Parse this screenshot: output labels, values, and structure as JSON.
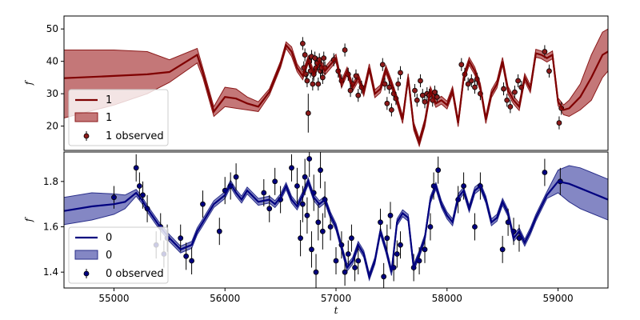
{
  "chart_data": [
    {
      "type": "line",
      "panel": "top",
      "xlabel": "",
      "ylabel": "f",
      "xlim": [
        54550,
        59450
      ],
      "ylim": [
        12.5,
        54
      ],
      "yticks": [
        20,
        30,
        40,
        50
      ],
      "grid": false,
      "legend_position": "lower-left",
      "legend": [
        "1",
        "1",
        "1 observed"
      ],
      "colors": {
        "line": "#7f0000",
        "band": "#b0494b",
        "band_edge": "#8b1a1a",
        "points": "#8b1a1a"
      },
      "model": {
        "x": [
          54550,
          55000,
          55300,
          55500,
          55750,
          55800,
          55900,
          56000,
          56100,
          56200,
          56300,
          56400,
          56500,
          56550,
          56600,
          56650,
          56700,
          56750,
          56800,
          56850,
          56900,
          57000,
          57050,
          57100,
          57150,
          57200,
          57250,
          57300,
          57350,
          57400,
          57450,
          57500,
          57550,
          57600,
          57650,
          57700,
          57750,
          57800,
          57850,
          57900,
          57950,
          58000,
          58050,
          58100,
          58150,
          58200,
          58250,
          58300,
          58350,
          58400,
          58450,
          58500,
          58550,
          58600,
          58650,
          58700,
          58750,
          58800,
          58850,
          58900,
          58950,
          59000,
          59050,
          59100,
          59200,
          59300,
          59400,
          59450
        ],
        "y": [
          34.8,
          35.5,
          36,
          36.7,
          42,
          36.5,
          24.5,
          29,
          28.5,
          27,
          26,
          30.5,
          39,
          45,
          43,
          38,
          35.5,
          40.5,
          36,
          40,
          37,
          41,
          33,
          37,
          32,
          35,
          30.5,
          38,
          30,
          31.5,
          37.5,
          33,
          28,
          22,
          35,
          20,
          15,
          21,
          31,
          27,
          28,
          26.5,
          31,
          21,
          35,
          40,
          37,
          32,
          22,
          30,
          33,
          40,
          31,
          28,
          26,
          35,
          31.5,
          42.5,
          42,
          41,
          42,
          27.5,
          25,
          25.5,
          29,
          35,
          42,
          43
        ],
        "lower": [
          22.5,
          26.5,
          30,
          33.5,
          39.5,
          35,
          23,
          26,
          25.5,
          25,
          24.5,
          29.5,
          38,
          44,
          41.5,
          36.8,
          34.3,
          39.3,
          34.8,
          38.8,
          35.8,
          39.8,
          31.8,
          35.8,
          30.8,
          33.8,
          29.3,
          36.8,
          28.8,
          30.3,
          36.3,
          31.8,
          26.8,
          20.8,
          33.8,
          18.8,
          13.8,
          19.8,
          29.8,
          25.8,
          26.8,
          25.3,
          29.8,
          19.8,
          33.8,
          38.8,
          35.8,
          30.8,
          20.8,
          28.8,
          31.8,
          38.8,
          29.8,
          26.8,
          24.8,
          33.8,
          30.3,
          41.3,
          40.8,
          39.8,
          40.8,
          26.3,
          23.5,
          23,
          25,
          28,
          35,
          37
        ],
        "upper": [
          43.5,
          43.5,
          43,
          40.5,
          44,
          38,
          26,
          32,
          31.5,
          29,
          27.5,
          31.5,
          40,
          46,
          44.5,
          39.2,
          36.7,
          41.7,
          37.2,
          41.2,
          38.2,
          42.2,
          34.2,
          38.2,
          33.2,
          36.2,
          31.7,
          39.2,
          31.2,
          32.7,
          38.7,
          34.2,
          29.2,
          23.2,
          36.2,
          21.2,
          16.2,
          22.2,
          32.2,
          28.2,
          29.2,
          27.7,
          32.2,
          22.2,
          36.2,
          41.2,
          38.2,
          33.2,
          23.2,
          31.2,
          34.2,
          41.2,
          32.2,
          29.2,
          27.2,
          36.2,
          32.7,
          43.7,
          43.2,
          42.2,
          43.2,
          28.7,
          26.5,
          28,
          33,
          42,
          49,
          50
        ]
      },
      "observed": {
        "x": [
          56700,
          56710,
          56720,
          56730,
          56740,
          56750,
          56760,
          56770,
          56780,
          56790,
          56800,
          56810,
          56820,
          56830,
          56840,
          56850,
          56860,
          56870,
          56880,
          56890,
          56900,
          56980,
          57020,
          57050,
          57080,
          57110,
          57130,
          57150,
          57180,
          57200,
          57230,
          57420,
          57440,
          57460,
          57480,
          57500,
          57520,
          57540,
          57560,
          57580,
          57710,
          57730,
          57760,
          57780,
          57800,
          57820,
          57840,
          57870,
          57890,
          57910,
          58130,
          58160,
          58190,
          58220,
          58250,
          58270,
          58300,
          58510,
          58540,
          58570,
          58610,
          58640,
          58670,
          58880,
          58920,
          59010,
          59030
        ],
        "y": [
          45.5,
          38,
          42,
          36,
          34,
          24,
          40,
          37,
          41.5,
          33,
          36,
          41,
          38,
          39.5,
          33,
          40.5,
          37,
          38,
          35,
          41,
          38,
          40.5,
          37,
          34,
          43.5,
          36,
          31,
          33,
          35.5,
          29.5,
          32,
          39,
          33,
          27,
          32,
          25,
          30,
          28.5,
          33,
          36.5,
          31,
          28,
          34,
          29.5,
          27.5,
          30,
          29.5,
          28,
          30.5,
          29,
          39,
          36,
          33,
          34,
          32,
          34.5,
          30,
          31.5,
          28,
          26,
          30.5,
          34,
          32,
          43,
          37,
          21,
          25.5
        ],
        "err": [
          2,
          2,
          2,
          2,
          2,
          6,
          2,
          2,
          2,
          2,
          2,
          2,
          2,
          2,
          2,
          2,
          2,
          2,
          2,
          2,
          2,
          2,
          2,
          2,
          2,
          2,
          2,
          2,
          2,
          2,
          2,
          2,
          2,
          2,
          2,
          2,
          2,
          2,
          2,
          2,
          2,
          2,
          2,
          2,
          2,
          2,
          2,
          2,
          2,
          2,
          2,
          2,
          2,
          2,
          2,
          2,
          2,
          2,
          2,
          2,
          2,
          2,
          2,
          2,
          2,
          2,
          2
        ]
      }
    },
    {
      "type": "line",
      "panel": "bottom",
      "xlabel": "t",
      "ylabel": "f",
      "xlim": [
        54550,
        59450
      ],
      "ylim": [
        1.33,
        1.93
      ],
      "xticks": [
        55000,
        56000,
        57000,
        58000,
        59000
      ],
      "yticks": [
        1.4,
        1.6,
        1.8
      ],
      "grid": false,
      "legend_position": "lower-left",
      "legend": [
        "0",
        "0",
        "0 observed"
      ],
      "colors": {
        "line": "#00007f",
        "band": "#5b5fb0",
        "band_edge": "#2a2f8a",
        "points": "#00007f"
      },
      "model": {
        "x": [
          54550,
          54800,
          55000,
          55100,
          55200,
          55250,
          55300,
          55400,
          55500,
          55600,
          55700,
          55750,
          55800,
          55900,
          56000,
          56050,
          56100,
          56150,
          56200,
          56300,
          56400,
          56450,
          56500,
          56550,
          56600,
          56650,
          56700,
          56750,
          56800,
          56850,
          56900,
          56950,
          57000,
          57050,
          57100,
          57150,
          57200,
          57250,
          57300,
          57350,
          57400,
          57450,
          57500,
          57550,
          57600,
          57650,
          57700,
          57750,
          57800,
          57850,
          57900,
          57950,
          58000,
          58050,
          58100,
          58150,
          58200,
          58250,
          58300,
          58350,
          58400,
          58450,
          58500,
          58550,
          58600,
          58650,
          58700,
          58750,
          58800,
          58900,
          59000,
          59100,
          59200,
          59300,
          59400,
          59450
        ],
        "y": [
          1.67,
          1.69,
          1.7,
          1.71,
          1.75,
          1.72,
          1.68,
          1.61,
          1.55,
          1.5,
          1.52,
          1.58,
          1.62,
          1.7,
          1.74,
          1.79,
          1.75,
          1.72,
          1.76,
          1.71,
          1.72,
          1.7,
          1.73,
          1.78,
          1.72,
          1.69,
          1.74,
          1.8,
          1.73,
          1.7,
          1.72,
          1.65,
          1.6,
          1.51,
          1.42,
          1.45,
          1.52,
          1.48,
          1.38,
          1.45,
          1.58,
          1.5,
          1.4,
          1.62,
          1.66,
          1.64,
          1.42,
          1.48,
          1.55,
          1.72,
          1.78,
          1.7,
          1.65,
          1.62,
          1.73,
          1.76,
          1.68,
          1.76,
          1.78,
          1.72,
          1.62,
          1.64,
          1.71,
          1.66,
          1.55,
          1.58,
          1.53,
          1.58,
          1.64,
          1.74,
          1.8,
          1.79,
          1.77,
          1.75,
          1.73,
          1.72
        ],
        "lower": [
          1.61,
          1.63,
          1.655,
          1.68,
          1.735,
          1.705,
          1.665,
          1.595,
          1.535,
          1.485,
          1.505,
          1.565,
          1.605,
          1.685,
          1.725,
          1.775,
          1.735,
          1.705,
          1.745,
          1.695,
          1.705,
          1.685,
          1.715,
          1.765,
          1.705,
          1.675,
          1.725,
          1.785,
          1.715,
          1.685,
          1.705,
          1.635,
          1.585,
          1.495,
          1.405,
          1.435,
          1.505,
          1.465,
          1.365,
          1.435,
          1.565,
          1.485,
          1.385,
          1.605,
          1.645,
          1.625,
          1.405,
          1.465,
          1.535,
          1.705,
          1.765,
          1.685,
          1.635,
          1.605,
          1.715,
          1.745,
          1.665,
          1.745,
          1.765,
          1.705,
          1.605,
          1.625,
          1.695,
          1.645,
          1.535,
          1.565,
          1.515,
          1.565,
          1.625,
          1.725,
          1.75,
          1.71,
          1.68,
          1.66,
          1.64,
          1.63
        ],
        "upper": [
          1.73,
          1.75,
          1.745,
          1.74,
          1.765,
          1.735,
          1.695,
          1.625,
          1.565,
          1.515,
          1.535,
          1.595,
          1.635,
          1.715,
          1.755,
          1.805,
          1.765,
          1.735,
          1.775,
          1.725,
          1.735,
          1.715,
          1.745,
          1.795,
          1.735,
          1.705,
          1.755,
          1.815,
          1.745,
          1.715,
          1.735,
          1.665,
          1.615,
          1.525,
          1.435,
          1.465,
          1.535,
          1.495,
          1.395,
          1.465,
          1.595,
          1.515,
          1.415,
          1.635,
          1.675,
          1.655,
          1.435,
          1.495,
          1.565,
          1.735,
          1.795,
          1.715,
          1.665,
          1.635,
          1.745,
          1.775,
          1.695,
          1.775,
          1.795,
          1.735,
          1.635,
          1.655,
          1.725,
          1.675,
          1.565,
          1.595,
          1.545,
          1.595,
          1.655,
          1.755,
          1.85,
          1.87,
          1.86,
          1.84,
          1.82,
          1.81
        ]
      },
      "observed": {
        "x": [
          55000,
          55200,
          55230,
          55260,
          55300,
          55380,
          55420,
          55450,
          55480,
          55600,
          55650,
          55700,
          55800,
          55950,
          56000,
          56050,
          56100,
          56350,
          56400,
          56450,
          56500,
          56600,
          56650,
          56680,
          56700,
          56720,
          56740,
          56760,
          56780,
          56800,
          56820,
          56840,
          56860,
          56880,
          56900,
          56950,
          57000,
          57050,
          57080,
          57110,
          57140,
          57170,
          57200,
          57400,
          57430,
          57460,
          57490,
          57520,
          57550,
          57580,
          57700,
          57750,
          57800,
          57850,
          57880,
          57920,
          58100,
          58150,
          58250,
          58300,
          58500,
          58550,
          58600,
          58650,
          58880,
          59020
        ],
        "y": [
          1.73,
          1.86,
          1.78,
          1.74,
          1.68,
          1.52,
          1.6,
          1.48,
          1.55,
          1.55,
          1.47,
          1.45,
          1.7,
          1.58,
          1.76,
          1.78,
          1.82,
          1.75,
          1.68,
          1.8,
          1.72,
          1.86,
          1.78,
          1.55,
          1.7,
          1.82,
          1.65,
          1.9,
          1.5,
          1.75,
          1.4,
          1.62,
          1.85,
          1.58,
          1.72,
          1.6,
          1.45,
          1.52,
          1.4,
          1.48,
          1.55,
          1.42,
          1.45,
          1.62,
          1.38,
          1.55,
          1.65,
          1.42,
          1.48,
          1.52,
          1.42,
          1.45,
          1.5,
          1.6,
          1.78,
          1.85,
          1.72,
          1.78,
          1.6,
          1.78,
          1.5,
          1.62,
          1.58,
          1.55,
          1.84,
          1.8
        ],
        "err": [
          0.05,
          0.06,
          0.06,
          0.06,
          0.06,
          0.06,
          0.06,
          0.06,
          0.06,
          0.06,
          0.06,
          0.06,
          0.06,
          0.06,
          0.06,
          0.06,
          0.06,
          0.06,
          0.06,
          0.06,
          0.06,
          0.06,
          0.08,
          0.08,
          0.08,
          0.08,
          0.08,
          0.08,
          0.08,
          0.08,
          0.08,
          0.08,
          0.08,
          0.08,
          0.08,
          0.06,
          0.06,
          0.06,
          0.06,
          0.06,
          0.06,
          0.06,
          0.06,
          0.06,
          0.06,
          0.06,
          0.06,
          0.06,
          0.06,
          0.06,
          0.06,
          0.06,
          0.06,
          0.06,
          0.06,
          0.06,
          0.06,
          0.06,
          0.06,
          0.06,
          0.06,
          0.06,
          0.06,
          0.06,
          0.06,
          0.06
        ]
      }
    }
  ]
}
